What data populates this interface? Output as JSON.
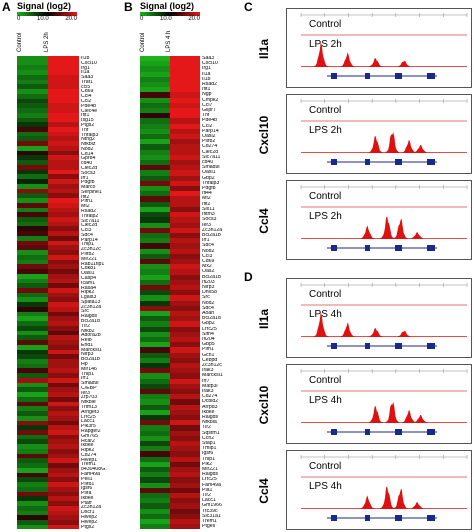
{
  "panels": {
    "A": {
      "letter": "A",
      "title": "Signal (log2)",
      "scale_ticks": [
        "0",
        "10.0",
        "20.0"
      ],
      "columns": [
        "Control",
        "LPS 2h"
      ],
      "genes": [
        "Il1b",
        "Cxcl10",
        "Irg1",
        "Il1a",
        "Saa3",
        "Traf1",
        "ccl5",
        "Cd69",
        "Ccl4",
        "Ccl2",
        "Pde4b",
        "Clec4e",
        "Ifit1",
        "Isg15",
        "Ptgs2",
        "Tnf",
        "Tnfaip3",
        "Ntng2",
        "Nfkbiz",
        "Nod2",
        "Cd14",
        "Gpr84",
        "cd40",
        "Clec2d",
        "Socs3",
        "Irf1",
        "Pdgfb",
        "Marco",
        "Serpine1",
        "Ifit2",
        "Plm1",
        "Mt2",
        "Rsad2",
        "Tnfaip2",
        "Slc7a11",
        "Clec2d",
        "Ccl3",
        "Sdc4",
        "Parp14",
        "Tnip1",
        "Zc3h12c",
        "Pilrb2",
        "Mir221",
        "Rab11fip1",
        "Cdk81",
        "Oasl1",
        "Casp4",
        "Icam1",
        "Rasa4",
        "Ripk2",
        "Lgals3",
        "Spata13",
        "Zc3h12a",
        "Src",
        "Ralgds",
        "Bcl2a1d",
        "Tlr2",
        "Nfkb2",
        "Adora2b",
        "Relb",
        "Ehd1",
        "Marcksl1",
        "Nlrp3",
        "Bcl2a1b",
        "Hp",
        "Mir146",
        "Tnip1",
        "Irf1",
        "Smad9i",
        "C/EBP",
        "Ier3",
        "Zfp703",
        "Nfkbie",
        "Trim13",
        "Arhgef3",
        "Lrrc25",
        "Lacc1",
        "Pik3r5",
        "Rapgef2",
        "Gm765",
        "Hcar2",
        "Ikbke",
        "Ripk2",
        "Cd274",
        "Hivep1",
        "Trem1",
        "8430408G.",
        "Fam49a",
        "Pell1",
        "Pilrb1",
        "Igsf6",
        "Pilra",
        "Ikbke",
        "Ptafr",
        "Zc3h12a",
        "Dscr1",
        "Hivep2",
        "Hivep2",
        "Ptgs2"
      ],
      "values": [
        [
          -0.8,
          1
        ],
        [
          -0.8,
          1
        ],
        [
          -0.7,
          1
        ],
        [
          -0.8,
          1
        ],
        [
          -0.6,
          0.9
        ],
        [
          -0.7,
          0.9
        ],
        [
          -0.5,
          0.9
        ],
        [
          -0.8,
          1
        ],
        [
          -0.6,
          1
        ],
        [
          -0.4,
          1
        ],
        [
          -0.5,
          0.9
        ],
        [
          -0.6,
          0.9
        ],
        [
          -0.7,
          1
        ],
        [
          -0.5,
          1
        ],
        [
          -0.3,
          0.8
        ],
        [
          0.3,
          1
        ],
        [
          -0.6,
          0.9
        ],
        [
          -0.5,
          0.8
        ],
        [
          0.5,
          0.9
        ],
        [
          -0.9,
          0.8
        ],
        [
          0.2,
          0.6
        ],
        [
          -0.3,
          0.9
        ],
        [
          -0.5,
          0.8
        ],
        [
          0.5,
          0.8
        ],
        [
          -0.3,
          1
        ],
        [
          -0.6,
          0.6
        ],
        [
          -0.2,
          0.9
        ],
        [
          -0.8,
          0.7
        ],
        [
          0.6,
          0.8
        ],
        [
          -0.5,
          0.6
        ],
        [
          -0.8,
          1
        ],
        [
          0.4,
          0.9
        ],
        [
          -0.7,
          0.8
        ],
        [
          0.3,
          0.7
        ],
        [
          -0.5,
          0.9
        ],
        [
          -0.6,
          0.8
        ],
        [
          0.2,
          0.6
        ],
        [
          0.3,
          0.8
        ],
        [
          -0.7,
          0.5
        ],
        [
          0.5,
          0.9
        ],
        [
          0.4,
          0.7
        ],
        [
          -0.8,
          0.6
        ],
        [
          -0.6,
          0.9
        ],
        [
          -0.7,
          0.6
        ],
        [
          0.5,
          0.7
        ],
        [
          0.3,
          0.5
        ],
        [
          -0.9,
          0.7
        ],
        [
          -0.7,
          0.8
        ],
        [
          -0.5,
          0.5
        ],
        [
          0.5,
          0.9
        ],
        [
          -0.6,
          0.7
        ],
        [
          -0.8,
          0.6
        ],
        [
          -0.3,
          0.9
        ],
        [
          0.2,
          0.8
        ],
        [
          -0.7,
          0.5
        ],
        [
          -0.9,
          0.7
        ],
        [
          -0.6,
          0.8
        ],
        [
          -0.4,
          0.6
        ],
        [
          -0.8,
          0.4
        ],
        [
          -0.5,
          0.8
        ],
        [
          0.4,
          0.7
        ],
        [
          -0.9,
          0.6
        ],
        [
          -0.3,
          0.9
        ],
        [
          -0.4,
          0.5
        ],
        [
          -0.7,
          0.7
        ],
        [
          -0.6,
          0.7
        ],
        [
          0.3,
          0.8
        ],
        [
          -0.5,
          0.6
        ],
        [
          0.7,
          0.9
        ],
        [
          -0.8,
          0.5
        ],
        [
          -0.5,
          0.7
        ],
        [
          -0.9,
          0.8
        ],
        [
          -0.6,
          0.5
        ],
        [
          0.4,
          0.9
        ],
        [
          -0.7,
          0.6
        ],
        [
          -0.5,
          0.8
        ],
        [
          -0.8,
          0.7
        ],
        [
          0.6,
          0.5
        ],
        [
          -0.3,
          0.8
        ],
        [
          0.5,
          0.9
        ],
        [
          -0.6,
          0.6
        ],
        [
          -0.4,
          0.7
        ],
        [
          -0.8,
          0.8
        ],
        [
          -0.7,
          0.6
        ],
        [
          0.4,
          0.7
        ],
        [
          -0.5,
          0.9
        ],
        [
          -0.6,
          0.5
        ],
        [
          -0.9,
          0.7
        ],
        [
          0.3,
          0.8
        ],
        [
          -0.4,
          0.6
        ],
        [
          -0.7,
          0.9
        ],
        [
          -0.6,
          0.7
        ],
        [
          0.5,
          0.6
        ],
        [
          -0.3,
          0.8
        ],
        [
          -0.8,
          0.6
        ],
        [
          -0.6,
          0.9
        ],
        [
          -0.7,
          0.8
        ],
        [
          0.2,
          0.7
        ],
        [
          -0.5,
          0.6
        ],
        [
          -0.8,
          0.9
        ]
      ]
    },
    "B": {
      "letter": "B",
      "title": "Signal (log2)",
      "scale_ticks": [
        "0",
        "10.0",
        "20.0"
      ],
      "columns": [
        "Control",
        "LPS 4 h"
      ],
      "genes": [
        "Saa3",
        "Cxcl10",
        "Irg1",
        "Il1a",
        "Il1b",
        "Rsad2",
        "Ifit1",
        "Ngp",
        "Cmpk2",
        "Ccl7",
        "Glipr7",
        "Tnf",
        "Pde4b",
        "Ccl2",
        "Parp14",
        "Oasl2",
        "Pilrb2",
        "Cd274",
        "Clec2d",
        "Slc7a11",
        "cd40",
        "Smad9i",
        "Oasl1",
        "Gbp2",
        "Tnfaip3",
        "Pdgfb",
        "Ifi44",
        "Mt2",
        "Ifit2",
        "Slx11",
        "Ifitm3",
        "Socs3",
        "Ier3",
        "Zc3h12a",
        "Bcl2a1b",
        "Irf1",
        "Sdc4",
        "Nod2",
        "Ccl3",
        "Cd69",
        "Mx2",
        "Oas2",
        "Bcl2a1b",
        "Ifi203",
        "Nlrp3",
        "Dhx58",
        "Src",
        "Nod2",
        "Sdc4",
        "Aoah",
        "Bcl2a1d",
        "Gbp2",
        "Lrrc25",
        "Slfn4",
        "Ifi204",
        "Gbp5",
        "Pim1",
        "Gch1",
        "Cebpd",
        "Zc3h12c",
        "Irak3",
        "Marcksl1",
        "Irf7",
        "Mafp3l",
        "Irak3",
        "Cd274",
        "Dcbld2",
        "Arrpd3",
        "Ikbke",
        "Ralgds",
        "Nfkbia",
        "Tlr2",
        "Sqstm1",
        "Ccrl2",
        "Stap1",
        "Tmip1",
        "Igsf6",
        "Tnip1",
        "Pik2",
        "Mir221",
        "Ralgds",
        "Lrrc25",
        "Fam49a",
        "Pla1",
        "Tlr2",
        "Lacc1",
        "Gm1966",
        "Ttc39c",
        "Slc31a1",
        "Trem1",
        "Ptges"
      ],
      "values": [
        [
          -1,
          1
        ],
        [
          -0.9,
          1
        ],
        [
          -0.8,
          1
        ],
        [
          -0.9,
          1
        ],
        [
          -0.7,
          1
        ],
        [
          -0.8,
          1
        ],
        [
          -0.9,
          1
        ],
        [
          0.3,
          0.9
        ],
        [
          -0.8,
          1
        ],
        [
          -0.6,
          0.9
        ],
        [
          -0.7,
          1
        ],
        [
          0.2,
          1
        ],
        [
          -0.6,
          0.8
        ],
        [
          -0.7,
          1
        ],
        [
          -0.8,
          0.8
        ],
        [
          -0.6,
          0.9
        ],
        [
          -0.9,
          0.7
        ],
        [
          -0.5,
          0.8
        ],
        [
          -0.7,
          0.8
        ],
        [
          -0.8,
          0.9
        ],
        [
          -0.6,
          0.7
        ],
        [
          0.4,
          0.8
        ],
        [
          -0.7,
          0.9
        ],
        [
          -0.5,
          0.7
        ],
        [
          0.5,
          0.9
        ],
        [
          -0.8,
          0.6
        ],
        [
          -0.6,
          1
        ],
        [
          0.4,
          0.8
        ],
        [
          -0.5,
          0.8
        ],
        [
          -0.9,
          0.6
        ],
        [
          -0.4,
          0.9
        ],
        [
          -0.3,
          0.8
        ],
        [
          -0.8,
          0.7
        ],
        [
          0.5,
          0.9
        ],
        [
          -0.6,
          0.6
        ],
        [
          -0.7,
          0.8
        ],
        [
          0.3,
          0.7
        ],
        [
          -0.8,
          0.8
        ],
        [
          -0.5,
          0.6
        ],
        [
          0.4,
          0.7
        ],
        [
          -0.8,
          0.9
        ],
        [
          -0.7,
          0.8
        ],
        [
          -0.9,
          0.6
        ],
        [
          -0.6,
          0.7
        ],
        [
          0.5,
          0.8
        ],
        [
          -0.4,
          0.6
        ],
        [
          -0.8,
          0.9
        ],
        [
          -0.3,
          0.7
        ],
        [
          0.6,
          0.6
        ],
        [
          -0.9,
          0.8
        ],
        [
          -0.5,
          0.7
        ],
        [
          -0.7,
          0.9
        ],
        [
          -0.4,
          0.6
        ],
        [
          -0.8,
          0.7
        ],
        [
          -0.6,
          0.8
        ],
        [
          -0.9,
          0.6
        ],
        [
          0.3,
          0.9
        ],
        [
          -0.5,
          0.7
        ],
        [
          -0.7,
          0.6
        ],
        [
          -0.3,
          0.8
        ],
        [
          0.5,
          0.7
        ],
        [
          -0.8,
          0.6
        ],
        [
          -0.6,
          0.9
        ],
        [
          -0.4,
          0.7
        ],
        [
          0.4,
          0.6
        ],
        [
          -0.7,
          0.8
        ],
        [
          -0.8,
          0.5
        ],
        [
          -0.5,
          0.8
        ],
        [
          -0.9,
          0.7
        ],
        [
          -0.3,
          0.6
        ],
        [
          0.5,
          0.9
        ],
        [
          -0.7,
          0.5
        ],
        [
          -0.6,
          0.7
        ],
        [
          -0.8,
          0.6
        ],
        [
          -0.4,
          0.8
        ],
        [
          -0.7,
          0.7
        ],
        [
          0.3,
          0.6
        ],
        [
          -0.6,
          0.8
        ],
        [
          -0.9,
          0.5
        ],
        [
          -0.5,
          0.7
        ],
        [
          -0.7,
          0.8
        ],
        [
          -0.4,
          0.6
        ],
        [
          -0.8,
          0.7
        ],
        [
          0.4,
          0.5
        ],
        [
          -0.6,
          0.8
        ],
        [
          -0.7,
          0.6
        ],
        [
          -0.5,
          0.7
        ],
        [
          -0.8,
          0.5
        ],
        [
          -0.6,
          0.6
        ],
        [
          -0.9,
          0.8
        ],
        [
          -0.7,
          0.7
        ]
      ]
    },
    "C": {
      "letter": "C",
      "tracks": [
        {
          "gene": "Il1a",
          "top_label": "Control",
          "bottom_label": "LPS 2h"
        },
        {
          "gene": "Cxcl10",
          "top_label": "Control",
          "bottom_label": "LPS 2h"
        },
        {
          "gene": "Ccl4",
          "top_label": "Control",
          "bottom_label": "LPS 2h"
        }
      ]
    },
    "D": {
      "letter": "D",
      "tracks": [
        {
          "gene": "Il1a",
          "top_label": "Control",
          "bottom_label": "LPS 4h"
        },
        {
          "gene": "Cxcl10",
          "top_label": "Control",
          "bottom_label": "LPS 4h"
        },
        {
          "gene": "Ccl4",
          "top_label": "Control",
          "bottom_label": "LPS 4h"
        }
      ]
    }
  },
  "colors": {
    "low": "#1db31d",
    "mid": "#000000",
    "high": "#e41818",
    "peak": "#e01010"
  }
}
